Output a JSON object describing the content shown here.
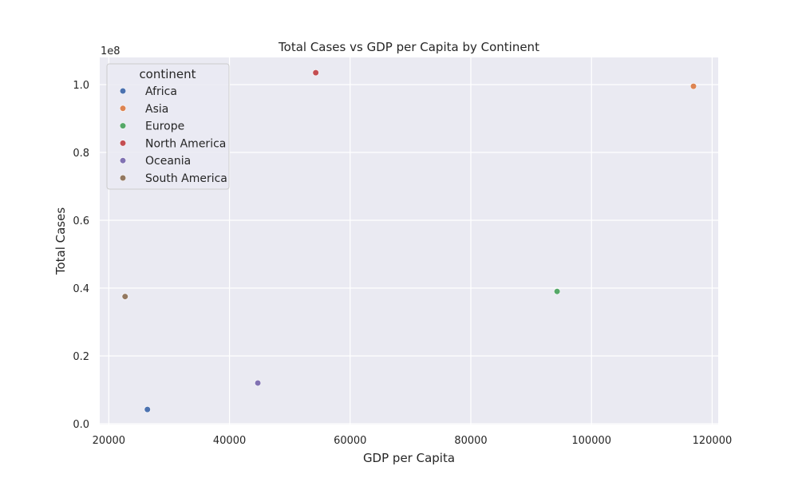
{
  "chart_data": {
    "type": "scatter",
    "title": "Total Cases vs GDP per Capita by Continent",
    "xlabel": "GDP per Capita",
    "ylabel": "Total Cases",
    "y_offset_label": "1e8",
    "xlim": [
      18500,
      121000
    ],
    "ylim": [
      -0.0025,
      1.08
    ],
    "xticks": [
      20000,
      40000,
      60000,
      80000,
      100000,
      120000
    ],
    "xtick_labels": [
      "20000",
      "40000",
      "60000",
      "80000",
      "100000",
      "120000"
    ],
    "yticks": [
      0.0,
      0.2,
      0.4,
      0.6,
      0.8,
      1.0
    ],
    "ytick_labels": [
      "0.0",
      "0.2",
      "0.4",
      "0.6",
      "0.8",
      "1.0"
    ],
    "grid": true,
    "legend": {
      "title": "continent",
      "placement": "upper-left"
    },
    "series": [
      {
        "name": "Africa",
        "color": "#4c72b0",
        "points": [
          [
            26400,
            0.042
          ]
        ]
      },
      {
        "name": "Asia",
        "color": "#dd8452",
        "points": [
          [
            116900,
            0.995
          ]
        ]
      },
      {
        "name": "Europe",
        "color": "#55a868",
        "points": [
          [
            94300,
            0.39
          ]
        ]
      },
      {
        "name": "North America",
        "color": "#c44e52",
        "points": [
          [
            54300,
            1.035
          ]
        ]
      },
      {
        "name": "Oceania",
        "color": "#8172b3",
        "points": [
          [
            44700,
            0.12
          ]
        ]
      },
      {
        "name": "South America",
        "color": "#937860",
        "points": [
          [
            22700,
            0.375
          ]
        ]
      }
    ]
  }
}
